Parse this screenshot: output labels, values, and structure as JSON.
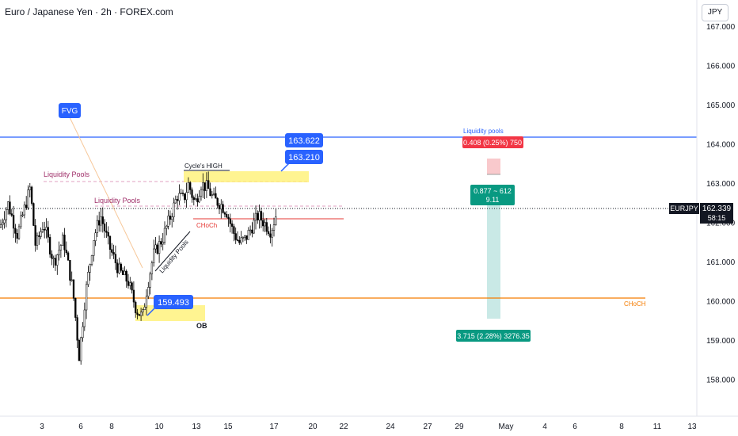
{
  "header": {
    "title": "Euro / Japanese Yen · 2h · FOREX.com",
    "currency_button": "JPY"
  },
  "price_axis": {
    "symbol_label": "EURJPY",
    "last_price": "162.339",
    "countdown": "58:15",
    "ticks": [
      "167.000",
      "166.000",
      "165.000",
      "164.000",
      "163.000",
      "162.000",
      "161.000",
      "160.000",
      "159.000",
      "158.000"
    ]
  },
  "time_axis": {
    "ticks": [
      "3",
      "6",
      "8",
      "10",
      "13",
      "15",
      "17",
      "20",
      "22",
      "24",
      "27",
      "29",
      "May",
      "4",
      "6",
      "8",
      "11",
      "13"
    ]
  },
  "annotations": {
    "fvg": "FVG",
    "liquidity_pools_1": "Liquidity Pools",
    "liquidity_pools_2": "Liquidity Pools",
    "liquidity_pools_trend": "Liquidity Pools",
    "liquidity_pools_top": "Liquidity pools",
    "cycles_high": "Cycle's HIGH",
    "choch_red": "CHoCh",
    "choch_orange": "CHoCH",
    "ob": "OB",
    "price_163622": "163.622",
    "price_163210": "163.210",
    "price_159493": "159.493"
  },
  "position_tool": {
    "stop_label": "0.408 (0.25%) 750",
    "mid_label_1": "0.877 ~ 612",
    "mid_label_2": "9.11",
    "target_label": "3.715 (2.28%) 3276.35"
  },
  "colors": {
    "up_candle": "#ffffff",
    "down_candle": "#000000",
    "blue_line": "#2962ff",
    "orange_line": "#f57c00",
    "red_line": "#e53935",
    "zone_yellow": "#fff176",
    "callout_blue": "#2962ff",
    "target_green": "#089981",
    "stop_red": "#f23645"
  },
  "chart_data": {
    "type": "candlestick",
    "symbol": "EURJPY",
    "timeframe": "2h",
    "ylim": [
      157.5,
      167.4
    ],
    "levels": [
      {
        "value": 164.18
      },
      {
        "value": 160.05
      },
      {
        "value": 162.1
      }
    ],
    "path": [
      [
        0,
        161.9
      ],
      [
        10,
        162.5
      ],
      [
        22,
        161.7
      ],
      [
        38,
        162.9
      ],
      [
        45,
        161.4
      ],
      [
        55,
        162.0
      ],
      [
        68,
        161.0
      ],
      [
        80,
        161.6
      ],
      [
        92,
        160.3
      ],
      [
        100,
        158.6
      ],
      [
        108,
        160.2
      ],
      [
        118,
        161.6
      ],
      [
        127,
        162.2
      ],
      [
        138,
        161.4
      ],
      [
        150,
        160.8
      ],
      [
        162,
        160.5
      ],
      [
        172,
        159.8
      ],
      [
        180,
        159.6
      ],
      [
        186,
        160.4
      ],
      [
        194,
        161.2
      ],
      [
        205,
        161.6
      ],
      [
        214,
        162.1
      ],
      [
        224,
        162.7
      ],
      [
        232,
        162.6
      ],
      [
        238,
        163.0
      ],
      [
        246,
        162.5
      ],
      [
        254,
        163.0
      ],
      [
        262,
        162.9
      ],
      [
        270,
        162.6
      ],
      [
        278,
        162.5
      ],
      [
        286,
        162.3
      ],
      [
        294,
        161.8
      ],
      [
        302,
        161.5
      ],
      [
        310,
        161.6
      ],
      [
        318,
        161.9
      ],
      [
        326,
        162.2
      ],
      [
        334,
        162.0
      ],
      [
        342,
        161.8
      ],
      [
        350,
        162.3
      ]
    ]
  }
}
